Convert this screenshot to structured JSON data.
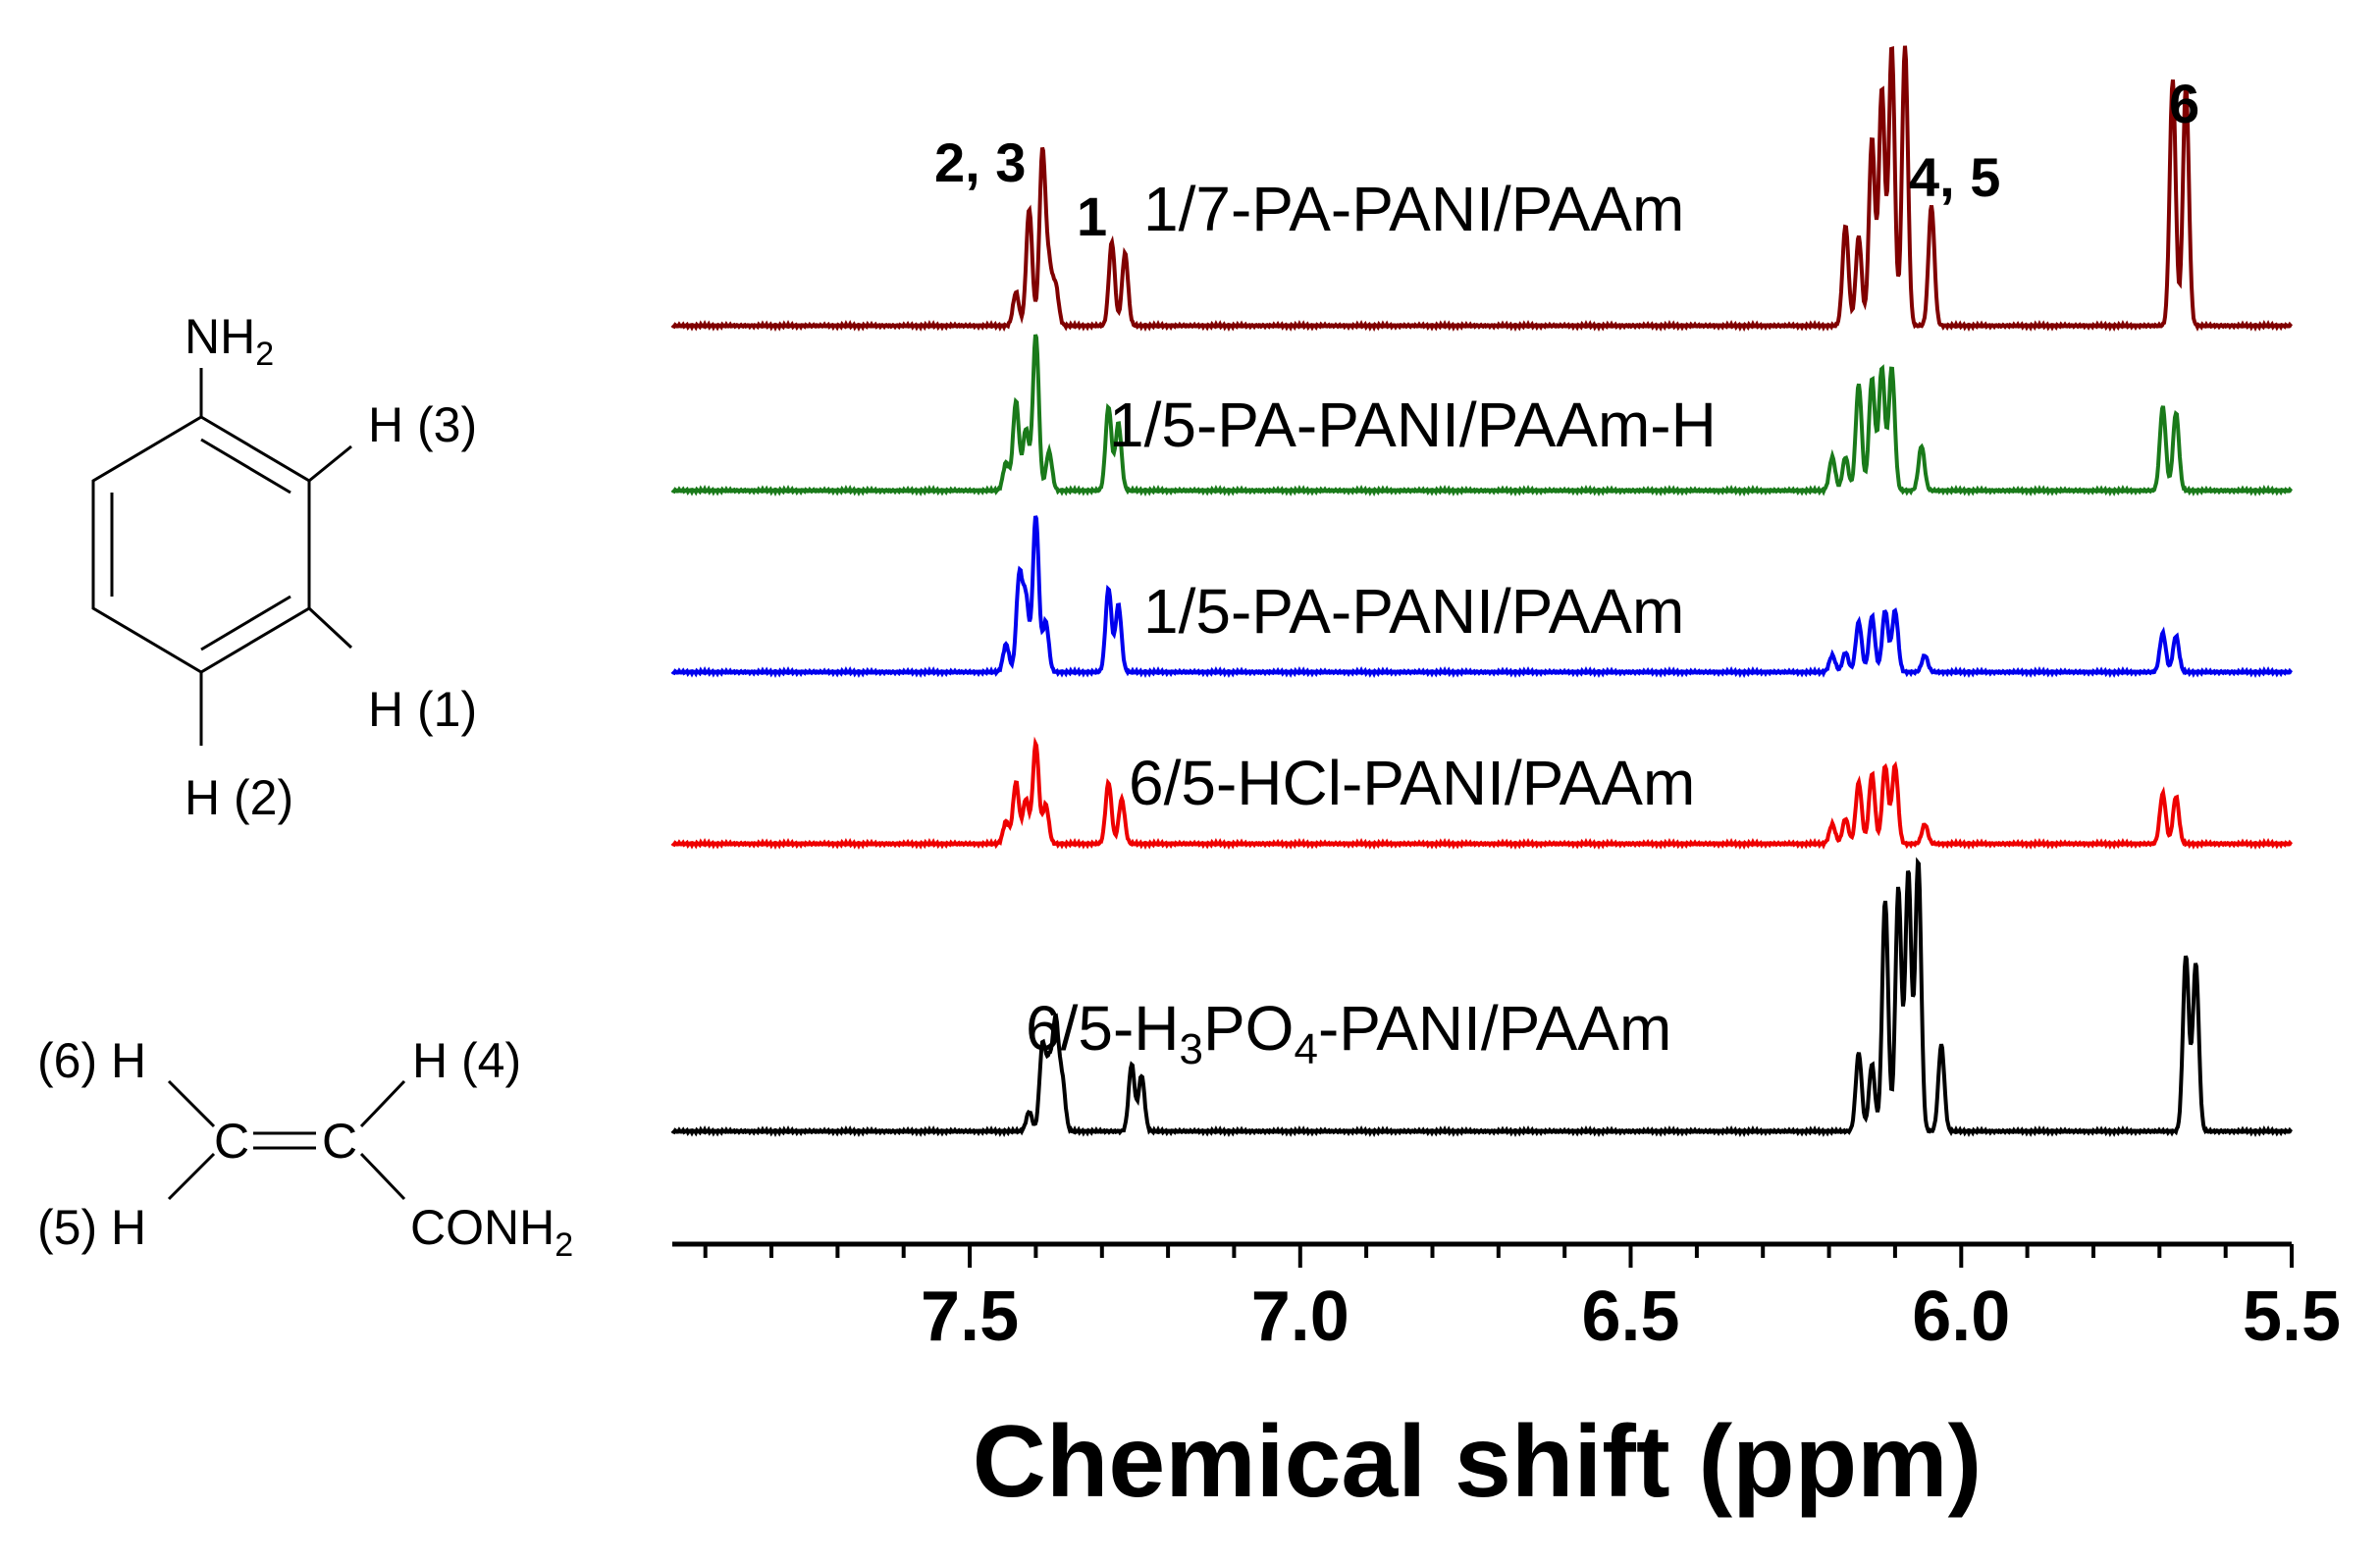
{
  "chart_data": {
    "type": "line",
    "xlabel": "Chemical shift (ppm)",
    "xlim": [
      7.95,
      5.5
    ],
    "x_ticks": [
      7.5,
      7.0,
      6.5,
      6.0,
      5.5
    ],
    "x_tick_labels": [
      "7.5",
      "7.0",
      "6.5",
      "6.0",
      "5.5"
    ],
    "series": [
      {
        "name": "1/7-PA-PANI/PAAm",
        "label_prefix": "1/7-PA-PANI/PAAm",
        "label_sub1": "",
        "label_mid": "",
        "label_sub2": "",
        "label_suffix": "",
        "color": "#800000",
        "peaks": [
          [
            7.43,
            0.12
          ],
          [
            7.41,
            0.42
          ],
          [
            7.39,
            0.62
          ],
          [
            7.38,
            0.2
          ],
          [
            7.37,
            0.14
          ],
          [
            7.285,
            0.3
          ],
          [
            7.265,
            0.26
          ],
          [
            6.175,
            0.36
          ],
          [
            6.155,
            0.32
          ],
          [
            6.135,
            0.67
          ],
          [
            6.12,
            0.85
          ],
          [
            6.105,
            1.0
          ],
          [
            6.085,
            1.0
          ],
          [
            6.045,
            0.43
          ],
          [
            5.68,
            0.88
          ],
          [
            5.66,
            0.86
          ]
        ]
      },
      {
        "name": "1/5-PA-PANI/PAAm-H",
        "label_prefix": "1/5-PA-PANI/PAAm-H",
        "label_sub1": "",
        "label_mid": "",
        "label_sub2": "",
        "label_suffix": "",
        "color": "#1a7a1a",
        "peaks": [
          [
            7.445,
            0.1
          ],
          [
            7.43,
            0.32
          ],
          [
            7.415,
            0.22
          ],
          [
            7.4,
            0.56
          ],
          [
            7.38,
            0.14
          ],
          [
            7.29,
            0.3
          ],
          [
            7.275,
            0.24
          ],
          [
            6.195,
            0.12
          ],
          [
            6.175,
            0.12
          ],
          [
            6.155,
            0.38
          ],
          [
            6.135,
            0.4
          ],
          [
            6.12,
            0.44
          ],
          [
            6.105,
            0.44
          ],
          [
            6.06,
            0.16
          ],
          [
            5.695,
            0.3
          ],
          [
            5.675,
            0.28
          ]
        ]
      },
      {
        "name": "1/5-PA-PANI/PAAm",
        "label_prefix": "1/5-PA-PANI/PAAm",
        "label_sub1": "",
        "label_mid": "",
        "label_sub2": "",
        "label_suffix": "",
        "color": "#0000ee",
        "peaks": [
          [
            7.445,
            0.1
          ],
          [
            7.425,
            0.34
          ],
          [
            7.415,
            0.26
          ],
          [
            7.4,
            0.56
          ],
          [
            7.385,
            0.18
          ],
          [
            7.29,
            0.3
          ],
          [
            7.275,
            0.24
          ],
          [
            6.195,
            0.06
          ],
          [
            6.175,
            0.07
          ],
          [
            6.155,
            0.18
          ],
          [
            6.135,
            0.2
          ],
          [
            6.115,
            0.22
          ],
          [
            6.1,
            0.22
          ],
          [
            6.055,
            0.06
          ],
          [
            5.695,
            0.14
          ],
          [
            5.675,
            0.13
          ]
        ]
      },
      {
        "name": "6/5-HCl-PANI/PAAm",
        "label_prefix": "6/5-HCl-PANI/PAAm",
        "label_sub1": "",
        "label_mid": "",
        "label_sub2": "",
        "label_suffix": "",
        "color": "#ee0000",
        "peaks": [
          [
            7.445,
            0.08
          ],
          [
            7.43,
            0.22
          ],
          [
            7.415,
            0.16
          ],
          [
            7.4,
            0.36
          ],
          [
            7.385,
            0.14
          ],
          [
            7.29,
            0.22
          ],
          [
            7.27,
            0.16
          ],
          [
            6.195,
            0.07
          ],
          [
            6.175,
            0.09
          ],
          [
            6.155,
            0.22
          ],
          [
            6.135,
            0.25
          ],
          [
            6.115,
            0.28
          ],
          [
            6.1,
            0.28
          ],
          [
            6.055,
            0.07
          ],
          [
            5.695,
            0.18
          ],
          [
            5.675,
            0.17
          ]
        ]
      },
      {
        "name": "6/5-H3PO4-PANI/PAAm",
        "label_prefix": "6/5-H",
        "label_sub1": "3",
        "label_mid": "PO",
        "label_sub2": "4",
        "label_suffix": "-PANI/PAAm",
        "color": "#000000",
        "peaks": [
          [
            7.41,
            0.07
          ],
          [
            7.39,
            0.3
          ],
          [
            7.38,
            0.22
          ],
          [
            7.37,
            0.38
          ],
          [
            7.36,
            0.18
          ],
          [
            7.255,
            0.24
          ],
          [
            7.24,
            0.2
          ],
          [
            6.155,
            0.28
          ],
          [
            6.135,
            0.24
          ],
          [
            6.115,
            0.83
          ],
          [
            6.095,
            0.87
          ],
          [
            6.08,
            0.93
          ],
          [
            6.065,
            0.97
          ],
          [
            6.03,
            0.31
          ],
          [
            5.66,
            0.63
          ],
          [
            5.645,
            0.6
          ]
        ]
      }
    ],
    "peak_annotations": [
      "2, 3",
      "1",
      "4, 5",
      "6"
    ]
  },
  "structures": {
    "aniline": {
      "nh2": "NH",
      "nh2_sub": "2",
      "h3": "H (3)",
      "h1": "H (1)",
      "h2": "H (2)"
    },
    "acrylamide": {
      "h6": "(6) H",
      "h4": "H (4)",
      "h5": "(5) H",
      "c1": "C",
      "c2": "C",
      "conh2": "CONH",
      "conh2_sub": "2"
    }
  }
}
